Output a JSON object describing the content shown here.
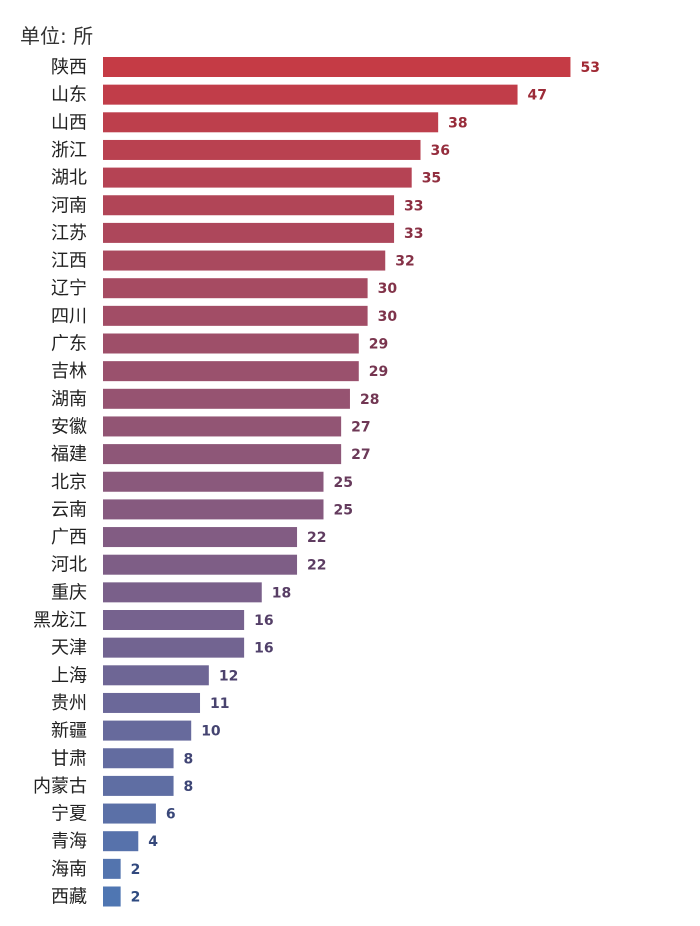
{
  "chart_data": {
    "type": "bar",
    "orientation": "horizontal",
    "unit_label": "单位: 所",
    "categories": [
      "陕西",
      "山东",
      "山西",
      "浙江",
      "湖北",
      "河南",
      "江苏",
      "江西",
      "辽宁",
      "四川",
      "广东",
      "吉林",
      "湖南",
      "安徽",
      "福建",
      "北京",
      "云南",
      "广西",
      "河北",
      "重庆",
      "黑龙江",
      "天津",
      "上海",
      "贵州",
      "新疆",
      "甘肃",
      "内蒙古",
      "宁夏",
      "青海",
      "海南",
      "西藏"
    ],
    "values": [
      53,
      47,
      38,
      36,
      35,
      33,
      33,
      32,
      30,
      30,
      29,
      29,
      28,
      27,
      27,
      25,
      25,
      22,
      22,
      18,
      16,
      16,
      12,
      11,
      10,
      8,
      8,
      6,
      4,
      2,
      2
    ],
    "xlim": [
      0,
      53
    ],
    "grid": false,
    "legend": "none",
    "color_gradient": [
      "#c53b45",
      "#4f76b2"
    ]
  }
}
